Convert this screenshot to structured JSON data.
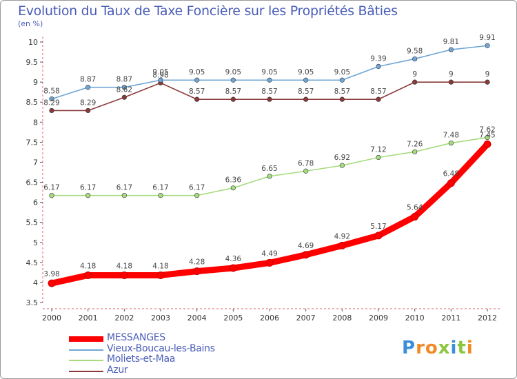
{
  "title": "Evolution du Taux de Taxe Foncière sur les Propriétés Bâties",
  "unit_label": "(en %)",
  "logo": {
    "letters": [
      "P",
      "r",
      "o",
      "x",
      "i",
      "t",
      "i"
    ],
    "colors": [
      "#3b8fd9",
      "#f08a24",
      "#f08a24",
      "#8cc63f",
      "#3b8fd9",
      "#8cc63f",
      "#f08a24"
    ]
  },
  "chart_data": {
    "type": "line",
    "categories": [
      "2000",
      "2001",
      "2002",
      "2003",
      "2004",
      "2005",
      "2006",
      "2007",
      "2008",
      "2009",
      "2010",
      "2011",
      "2012"
    ],
    "ylim": [
      3.5,
      10
    ],
    "yticks": [
      "3.5",
      "4",
      "4.5",
      "5",
      "5.5",
      "6",
      "6.5",
      "7",
      "7.5",
      "8",
      "8.5",
      "9",
      "9.5",
      "10"
    ],
    "grid": false,
    "legend_position": "bottom",
    "series": [
      {
        "name": "MESSANGES",
        "color": "#ff0000",
        "values": [
          3.98,
          4.18,
          4.18,
          4.18,
          4.28,
          4.36,
          4.49,
          4.69,
          4.92,
          5.17,
          5.64,
          6.48,
          7.45
        ],
        "labels": [
          "3.98",
          "4.18",
          "4.18",
          "4.18",
          "4.28",
          "4.36",
          "4.49",
          "4.69",
          "4.92",
          "5.17",
          "5.64",
          "6.48",
          "7.45"
        ]
      },
      {
        "name": "Vieux-Boucau-les-Bains",
        "color": "#6fa6d6",
        "values": [
          8.58,
          8.87,
          8.87,
          9.05,
          9.05,
          9.05,
          9.05,
          9.05,
          9.05,
          9.39,
          9.58,
          9.81,
          9.91
        ],
        "labels": [
          "8.58",
          "8.87",
          "8.87",
          "9.05",
          "9.05",
          "9.05",
          "9.05",
          "9.05",
          "9.05",
          "9.39",
          "9.58",
          "9.81",
          "9.91"
        ]
      },
      {
        "name": "Moliets-et-Maa",
        "color": "#a6dc7e",
        "values": [
          6.17,
          6.17,
          6.17,
          6.17,
          6.17,
          6.36,
          6.65,
          6.78,
          6.92,
          7.12,
          7.26,
          7.48,
          7.62
        ],
        "labels": [
          "6.17",
          "6.17",
          "6.17",
          "6.17",
          "6.17",
          "6.36",
          "6.65",
          "6.78",
          "6.92",
          "7.12",
          "7.26",
          "7.48",
          "7.62"
        ]
      },
      {
        "name": "Azur",
        "color": "#8b3a3a",
        "values": [
          8.29,
          8.29,
          8.62,
          8.98,
          8.57,
          8.57,
          8.57,
          8.57,
          8.57,
          8.57,
          9,
          9,
          9
        ],
        "labels": [
          "8.29",
          "8.29",
          "8.62",
          "8.98",
          "8.57",
          "8.57",
          "8.57",
          "8.57",
          "8.57",
          "8.57",
          "9",
          "9",
          "9"
        ]
      }
    ]
  }
}
